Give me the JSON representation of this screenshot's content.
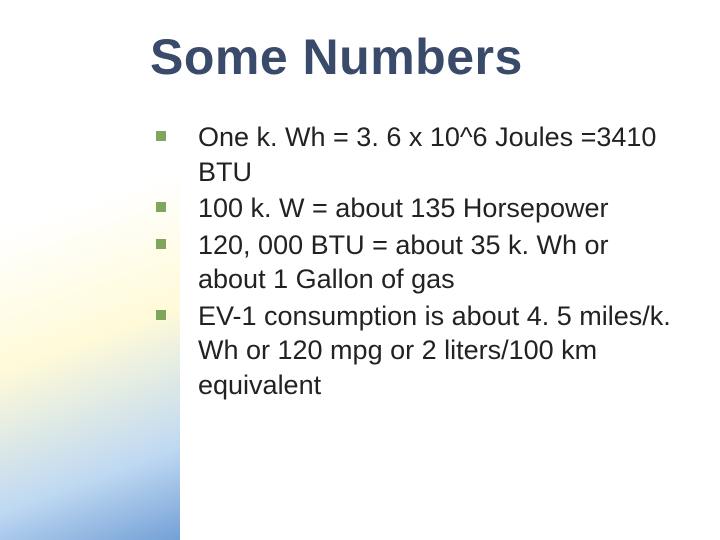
{
  "slide": {
    "title": "Some Numbers",
    "title_color": "#3a4a6b",
    "title_fontsize": 50,
    "body_fontsize": 27,
    "body_color": "#222222",
    "bullet_marker_color": "#7fa65c",
    "bullet_marker_size": 10,
    "background_color": "#ffffff",
    "gradient_colors": [
      "#ffffff",
      "#fff8c8",
      "#b4d2f0",
      "#6496d2"
    ],
    "bullets": [
      "One k. Wh = 3. 6 x 10^6 Joules =3410 BTU",
      "100 k. W = about 135 Horsepower",
      "120, 000 BTU = about 35 k. Wh or about 1 Gallon of gas",
      "EV-1 consumption is about 4. 5 miles/k. Wh or 120 mpg or 2 liters/100 km equivalent"
    ]
  }
}
